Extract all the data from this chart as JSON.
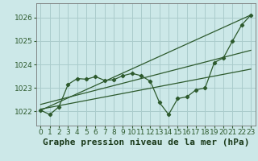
{
  "title": "Graphe pression niveau de la mer (hPa)",
  "background_color": "#cce8e8",
  "grid_color": "#aacccc",
  "line_color": "#2d5a2d",
  "xlim": [
    -0.5,
    23.5
  ],
  "ylim": [
    1021.4,
    1026.6
  ],
  "yticks": [
    1022,
    1023,
    1024,
    1025,
    1026
  ],
  "xticks": [
    0,
    1,
    2,
    3,
    4,
    5,
    6,
    7,
    8,
    9,
    10,
    11,
    12,
    13,
    14,
    15,
    16,
    17,
    18,
    19,
    20,
    21,
    22,
    23
  ],
  "series1_x": [
    0,
    1,
    2,
    3,
    4,
    5,
    6,
    7,
    8,
    9,
    10,
    11,
    12,
    13,
    14,
    15,
    16,
    17,
    18,
    19,
    20,
    21,
    22,
    23
  ],
  "series1_y": [
    1022.05,
    1021.87,
    1022.2,
    1023.15,
    1023.4,
    1023.37,
    1023.48,
    1023.32,
    1023.35,
    1023.52,
    1023.62,
    1023.52,
    1023.28,
    1022.38,
    1021.87,
    1022.55,
    1022.62,
    1022.92,
    1023.0,
    1024.08,
    1024.28,
    1025.0,
    1025.68,
    1026.1
  ],
  "line2_x": [
    0,
    23
  ],
  "line2_y": [
    1022.05,
    1026.1
  ],
  "line3_x": [
    0,
    23
  ],
  "line3_y": [
    1022.3,
    1024.6
  ],
  "line4_x": [
    0,
    23
  ],
  "line4_y": [
    1022.1,
    1023.8
  ],
  "title_fontsize": 8,
  "tick_fontsize": 6.5,
  "title_color": "#1a3a1a"
}
